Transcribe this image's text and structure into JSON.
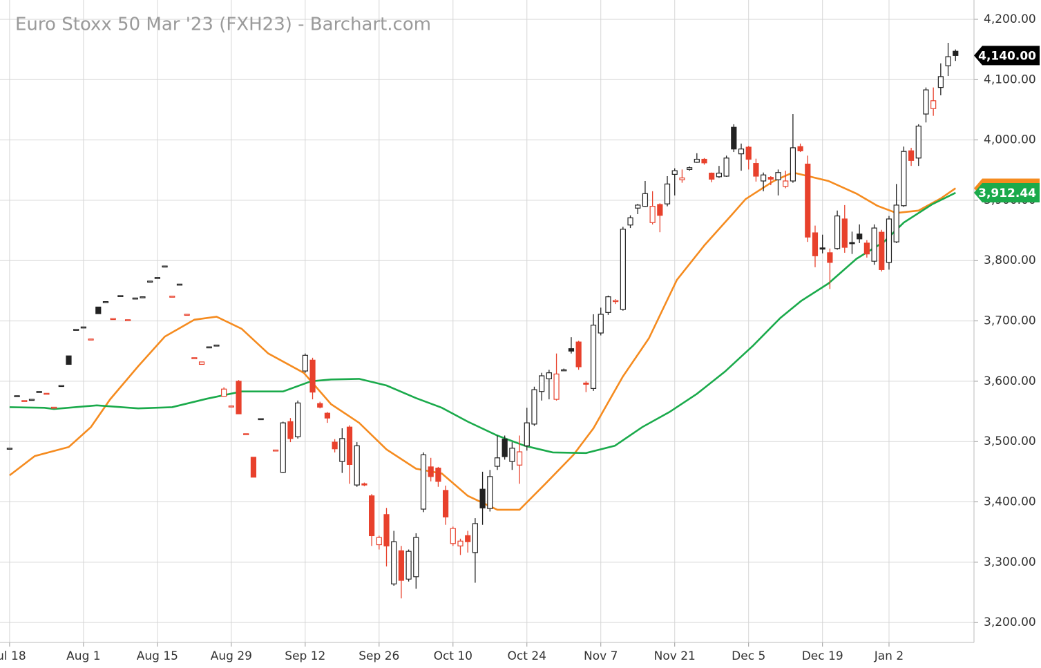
{
  "chart_data": {
    "type": "candlestick",
    "title": "Euro Stoxx 50 Mar '23 (FXH23) - Barchart.com",
    "xlim": [
      -1.3,
      130.5
    ],
    "ylim": [
      3167,
      4232
    ],
    "yticks": [
      {
        "value": 3200,
        "label": "3,200.00"
      },
      {
        "value": 3300,
        "label": "3,300.00"
      },
      {
        "value": 3400,
        "label": "3,400.00"
      },
      {
        "value": 3500,
        "label": "3,500.00"
      },
      {
        "value": 3600,
        "label": "3,600.00"
      },
      {
        "value": 3700,
        "label": "3,700.00"
      },
      {
        "value": 3800,
        "label": "3,800.00"
      },
      {
        "value": 3900,
        "label": "3,900.00"
      },
      {
        "value": 4000,
        "label": "4,000.00"
      },
      {
        "value": 4100,
        "label": "4,100.00"
      },
      {
        "value": 4200,
        "label": "4,200.00"
      }
    ],
    "xticks": [
      {
        "value": 0,
        "label": "Jul 18"
      },
      {
        "value": 10,
        "label": "Aug 1"
      },
      {
        "value": 20,
        "label": "Aug 15"
      },
      {
        "value": 30,
        "label": "Aug 29"
      },
      {
        "value": 40,
        "label": "Sep 12"
      },
      {
        "value": 50,
        "label": "Sep 26"
      },
      {
        "value": 60,
        "label": "Oct 10"
      },
      {
        "value": 70,
        "label": "Oct 24"
      },
      {
        "value": 80,
        "label": "Nov 7"
      },
      {
        "value": 90,
        "label": "Nov 21"
      },
      {
        "value": 100,
        "label": "Dec 5"
      },
      {
        "value": 110,
        "label": "Dec 19"
      },
      {
        "value": 119,
        "label": "Jan 2"
      }
    ],
    "grid": true,
    "up_color": "#222222",
    "down_color": "#e8412c",
    "candles": {
      "x": [
        0,
        1,
        2,
        3,
        4,
        5,
        6,
        7,
        8,
        9,
        10,
        11,
        12,
        13,
        14,
        15,
        16,
        17,
        18,
        19,
        20,
        21,
        22,
        23,
        24,
        25,
        26,
        27,
        28,
        29,
        30,
        31,
        32,
        33,
        34,
        36,
        37,
        38,
        39,
        40,
        41,
        42,
        43,
        44,
        45,
        46,
        47,
        48,
        49,
        50,
        51,
        52,
        53,
        54,
        55,
        56,
        57,
        58,
        59,
        60,
        61,
        62,
        63,
        64,
        65,
        66,
        67,
        68,
        69,
        70,
        71,
        72,
        73,
        74,
        75,
        76,
        77,
        78,
        79,
        80,
        81,
        82,
        83,
        84,
        85,
        86,
        87,
        88,
        89,
        90,
        91,
        92,
        93,
        94,
        95,
        96,
        97,
        98,
        99,
        100,
        101,
        102,
        103,
        104,
        105,
        106,
        107,
        108,
        109,
        110,
        111,
        112,
        113,
        114,
        115,
        116,
        117,
        118,
        119,
        120,
        121,
        122,
        123,
        124,
        125,
        126,
        127,
        128
      ],
      "open": [
        3489,
        3576,
        3568,
        3570,
        3583,
        3580,
        3557,
        3593,
        3642,
        3686,
        3690,
        3670,
        3723,
        3732,
        3704,
        3742,
        3702,
        3738,
        3740,
        3766,
        3772,
        3791,
        3741,
        3761,
        3711,
        3639,
        3628,
        3657,
        3660,
        3575,
        3559,
        3600,
        3513,
        3474,
        3538,
        3486,
        3449,
        3533,
        3508,
        3617,
        3635,
        3563,
        3547,
        3499,
        3467,
        3524,
        3428,
        3430,
        3410,
        3329,
        3379,
        3264,
        3319,
        3272,
        3276,
        3388,
        3458,
        3456,
        3419,
        3331,
        3327,
        3344,
        3316,
        3421,
        3389,
        3459,
        3504,
        3467,
        3461,
        3493,
        3529,
        3583,
        3604,
        3570,
        3619,
        3654,
        3665,
        3597,
        3588,
        3680,
        3714,
        3732,
        3719,
        3859,
        3887,
        3890,
        3863,
        3893,
        3894,
        3943,
        3934,
        3951,
        3963,
        3968,
        3945,
        3939,
        3940,
        4021,
        3977,
        3988,
        3961,
        3932,
        3938,
        3934,
        3923,
        3932,
        3989,
        3960,
        3846,
        3821,
        3813,
        3820,
        3869,
        3830,
        3844,
        3829,
        3799,
        3847,
        3797,
        3831,
        3891,
        3982,
        3970,
        4043,
        4052,
        4087,
        4123,
        4147
      ],
      "high": [
        3489,
        3576,
        3568,
        3570,
        3583,
        3580,
        3557,
        3593,
        3642,
        3686,
        3690,
        3670,
        3723,
        3732,
        3704,
        3742,
        3702,
        3738,
        3740,
        3766,
        3772,
        3791,
        3741,
        3761,
        3711,
        3639,
        3632,
        3657,
        3660,
        3590,
        3559,
        3602,
        3513,
        3474,
        3538,
        3486,
        3533,
        3539,
        3568,
        3646,
        3639,
        3566,
        3549,
        3504,
        3522,
        3527,
        3499,
        3432,
        3413,
        3344,
        3390,
        3352,
        3327,
        3321,
        3348,
        3482,
        3473,
        3458,
        3427,
        3359,
        3339,
        3352,
        3373,
        3450,
        3453,
        3510,
        3510,
        3499,
        3510,
        3556,
        3591,
        3614,
        3619,
        3646,
        3621,
        3673,
        3667,
        3600,
        3711,
        3722,
        3742,
        3736,
        3856,
        3875,
        3894,
        3932,
        3915,
        3895,
        3940,
        3953,
        3951,
        3956,
        3978,
        3970,
        3946,
        3957,
        3974,
        4026,
        3994,
        3990,
        3969,
        3946,
        3940,
        3951,
        3949,
        4043,
        3994,
        3974,
        3858,
        3843,
        3820,
        3883,
        3892,
        3848,
        3860,
        3834,
        3860,
        3851,
        3874,
        3927,
        3989,
        3987,
        4026,
        4087,
        4087,
        4127,
        4161,
        4150
      ],
      "low": [
        3489,
        3576,
        3568,
        3570,
        3583,
        3580,
        3557,
        3593,
        3628,
        3686,
        3690,
        3670,
        3712,
        3732,
        3704,
        3742,
        3702,
        3738,
        3740,
        3766,
        3772,
        3791,
        3741,
        3761,
        3711,
        3639,
        3628,
        3657,
        3660,
        3575,
        3559,
        3546,
        3513,
        3441,
        3538,
        3486,
        3448,
        3499,
        3505,
        3614,
        3570,
        3555,
        3531,
        3482,
        3448,
        3430,
        3425,
        3426,
        3327,
        3321,
        3293,
        3261,
        3240,
        3268,
        3256,
        3383,
        3434,
        3425,
        3362,
        3327,
        3312,
        3316,
        3266,
        3362,
        3384,
        3453,
        3470,
        3453,
        3430,
        3485,
        3526,
        3568,
        3570,
        3568,
        3617,
        3646,
        3619,
        3582,
        3584,
        3676,
        3710,
        3728,
        3717,
        3854,
        3877,
        3889,
        3860,
        3847,
        3890,
        3908,
        3929,
        3949,
        3962,
        3959,
        3930,
        3937,
        3939,
        3980,
        3949,
        3951,
        3931,
        3915,
        3925,
        3908,
        3920,
        3929,
        3980,
        3831,
        3789,
        3812,
        3753,
        3818,
        3813,
        3811,
        3829,
        3805,
        3793,
        3782,
        3785,
        3829,
        3889,
        3957,
        3957,
        4029,
        4040,
        4074,
        4106,
        4131
      ],
      "close": [
        3489,
        3576,
        3568,
        3570,
        3583,
        3580,
        3557,
        3593,
        3628,
        3686,
        3690,
        3670,
        3712,
        3732,
        3704,
        3742,
        3702,
        3738,
        3740,
        3766,
        3772,
        3791,
        3741,
        3761,
        3711,
        3639,
        3632,
        3657,
        3660,
        3587,
        3559,
        3546,
        3513,
        3441,
        3538,
        3486,
        3531,
        3505,
        3564,
        3643,
        3582,
        3557,
        3539,
        3488,
        3505,
        3462,
        3493,
        3428,
        3344,
        3341,
        3327,
        3334,
        3270,
        3318,
        3341,
        3478,
        3442,
        3434,
        3375,
        3356,
        3335,
        3334,
        3364,
        3390,
        3442,
        3473,
        3475,
        3489,
        3483,
        3531,
        3586,
        3609,
        3614,
        3612,
        3619,
        3650,
        3624,
        3595,
        3693,
        3711,
        3740,
        3734,
        3852,
        3871,
        3892,
        3911,
        3890,
        3875,
        3927,
        3949,
        3937,
        3954,
        3968,
        3962,
        3935,
        3945,
        3970,
        3985,
        3985,
        3968,
        3940,
        3942,
        3935,
        3946,
        3932,
        3987,
        3982,
        3839,
        3808,
        3819,
        3797,
        3874,
        3822,
        3828,
        3836,
        3811,
        3854,
        3785,
        3869,
        3892,
        3981,
        3966,
        4023,
        4083,
        4065,
        4105,
        4138,
        4140
      ]
    },
    "last_price": {
      "value": 4140,
      "label": "4,140.00"
    },
    "series": [
      {
        "color": "#f58b1f",
        "x": [
          0,
          3.4,
          8,
          11,
          13.6,
          17.4,
          21,
          25,
          28,
          31.4,
          35,
          39.8,
          43.5,
          47.3,
          51,
          55,
          58.5,
          62,
          66,
          69,
          72.5,
          76.3,
          79,
          83,
          86.5,
          90.3,
          94,
          97.8,
          99.6,
          103.4,
          106,
          110.8,
          114.6,
          117.4,
          120,
          123,
          126,
          128
        ],
        "values": [
          3444,
          3476,
          3491,
          3524,
          3570,
          3625,
          3674,
          3702,
          3707,
          3687,
          3646,
          3614,
          3562,
          3531,
          3487,
          3455,
          3447,
          3410,
          3387,
          3387,
          3430,
          3478,
          3522,
          3608,
          3671,
          3768,
          3825,
          3877,
          3902,
          3932,
          3946,
          3932,
          3911,
          3891,
          3879,
          3883,
          3903,
          3920
        ]
      },
      {
        "color": "#1aaa4b",
        "x": [
          0,
          4.7,
          6,
          11.8,
          17.4,
          22,
          26.7,
          31.4,
          37,
          40.8,
          43.5,
          47.3,
          51,
          55,
          58.5,
          62,
          66,
          69.7,
          73.5,
          78,
          81.9,
          85.6,
          89.3,
          93,
          96.8,
          100.6,
          104.3,
          107.1,
          110.8,
          114.6,
          118.3,
          121,
          124.8,
          128
        ],
        "values": [
          3557,
          3556,
          3554,
          3560,
          3555,
          3557,
          3571,
          3583,
          3583,
          3600,
          3603,
          3604,
          3593,
          3572,
          3556,
          3533,
          3510,
          3493,
          3482,
          3481,
          3493,
          3524,
          3549,
          3579,
          3616,
          3659,
          3705,
          3733,
          3762,
          3803,
          3831,
          3863,
          3893,
          3912.44
        ],
        "last_label": "3,912.44"
      }
    ]
  }
}
